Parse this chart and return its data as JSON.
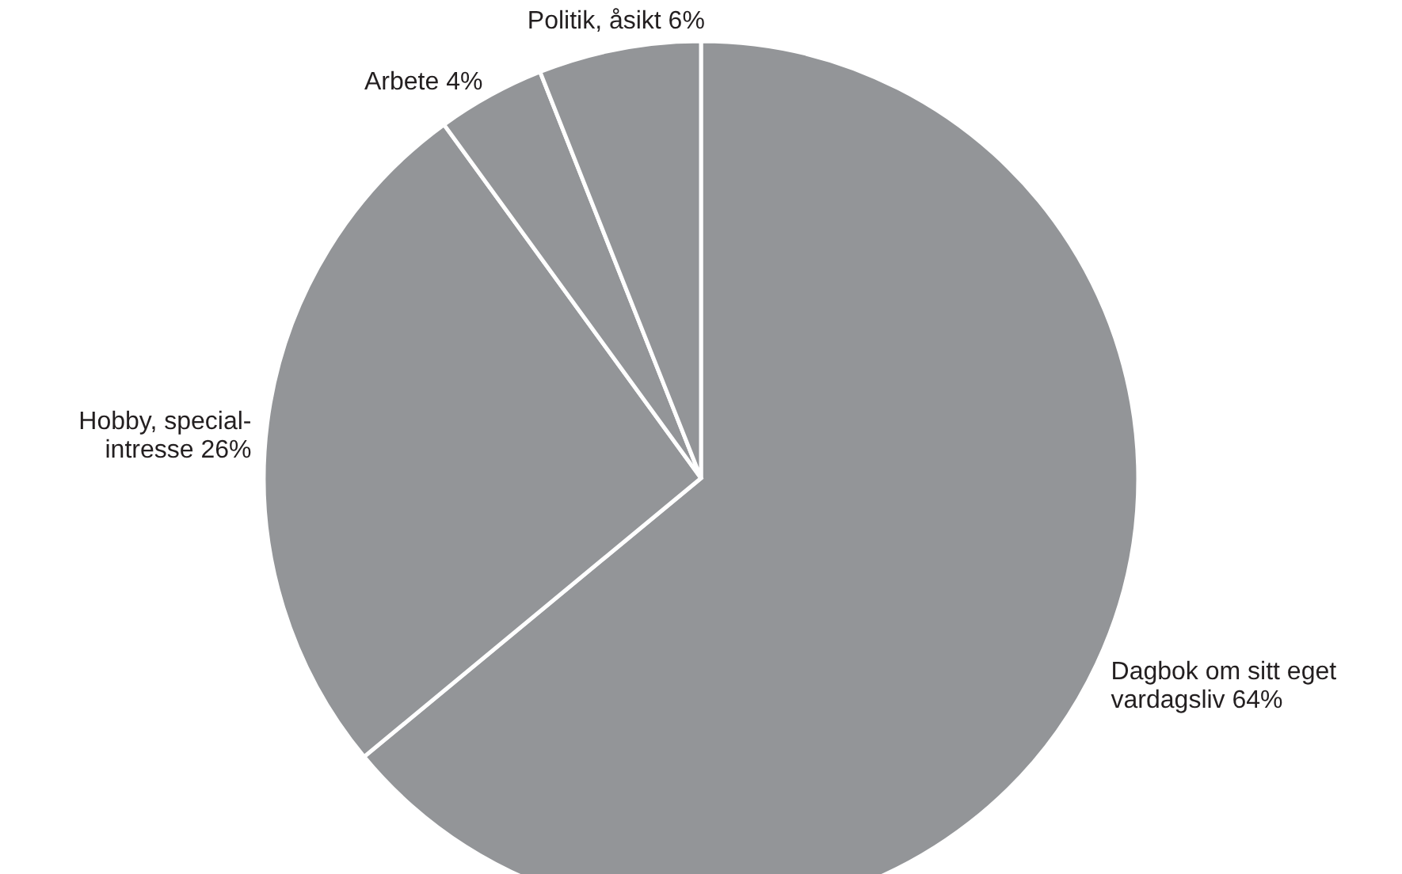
{
  "chart_data": {
    "type": "pie",
    "categories": [
      "Dagbok om sitt eget\nvardagsliv",
      "Hobby, special-\nintresse",
      "Arbete",
      "Politik, åsikt"
    ],
    "values": [
      64,
      26,
      4,
      6
    ],
    "value_labels": [
      "64%",
      "26%",
      "4%",
      "6%"
    ],
    "colors": [
      "#939598",
      "#939598",
      "#939598",
      "#939598"
    ]
  }
}
